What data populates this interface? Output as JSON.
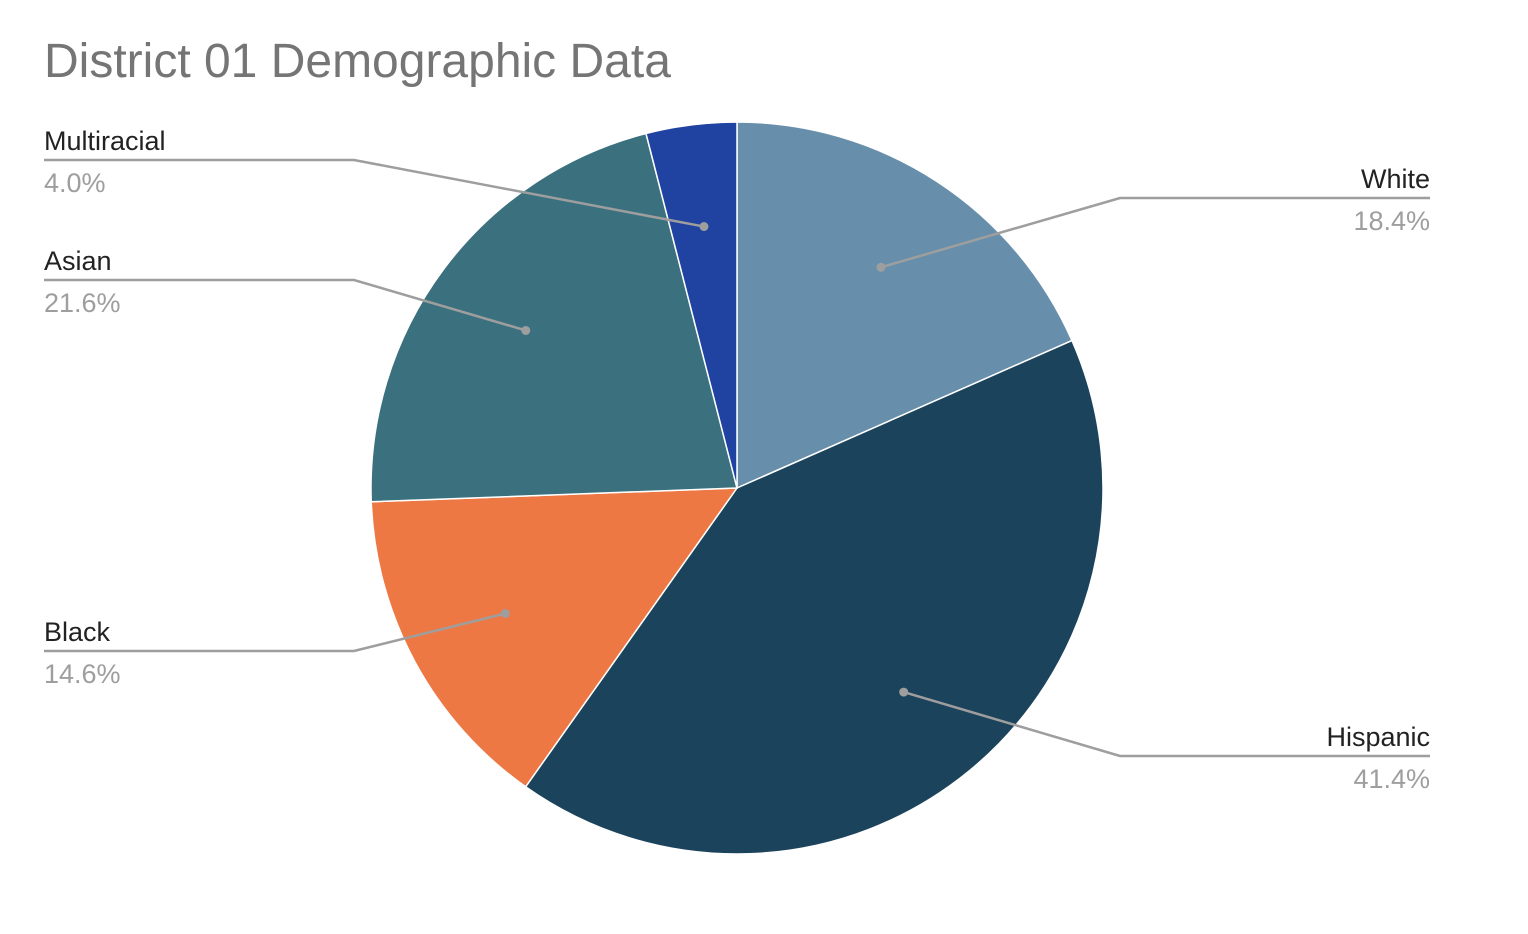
{
  "chart_data": {
    "type": "pie",
    "title": "District 01 Demographic Data",
    "legend": "none",
    "slices": [
      {
        "label": "White",
        "value": 18.4,
        "value_label": "18.4%",
        "color": "#678fab"
      },
      {
        "label": "Hispanic",
        "value": 41.4,
        "value_label": "41.4%",
        "color": "#1c435c"
      },
      {
        "label": "Black",
        "value": 14.6,
        "value_label": "14.6%",
        "color": "#ed7844"
      },
      {
        "label": "Asian",
        "value": 21.6,
        "value_label": "21.6%",
        "color": "#3b717f"
      },
      {
        "label": "Multiracial",
        "value": 4.0,
        "value_label": "4.0%",
        "color": "#2042a0"
      }
    ]
  }
}
